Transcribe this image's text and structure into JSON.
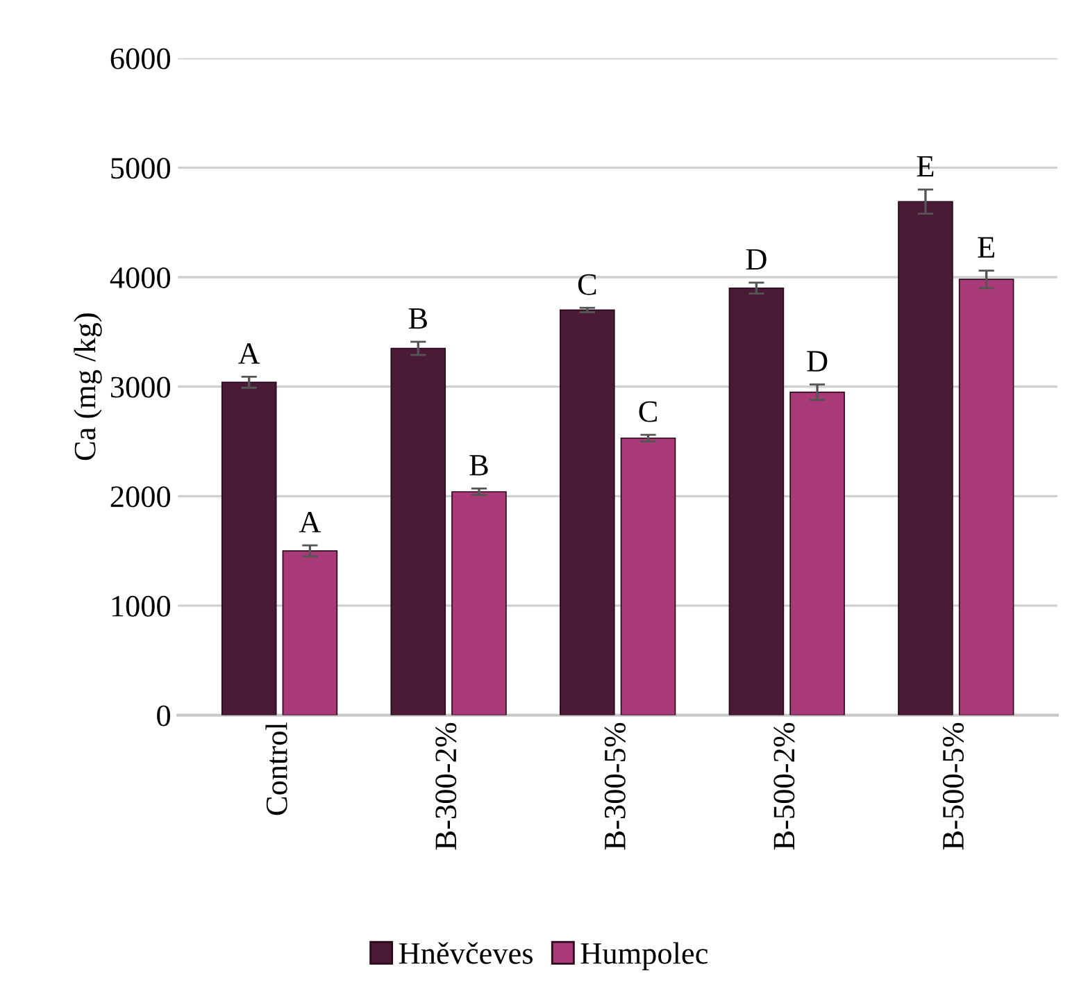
{
  "chart_data": {
    "type": "bar",
    "ylabel": "Ca (mg /kg)",
    "categories": [
      "Control",
      "B-300-2%",
      "B-300-5%",
      "B-500-2%",
      "B-500-5%"
    ],
    "series": [
      {
        "name": "Hněvčeves",
        "color": "#4a1a36",
        "values": [
          3040,
          3350,
          3700,
          3900,
          4690
        ],
        "errors": [
          50,
          60,
          20,
          50,
          110
        ],
        "value_labels": [
          "A",
          "B",
          "C",
          "D",
          "E"
        ]
      },
      {
        "name": "Humpolec",
        "color": "#a83a78",
        "values": [
          1500,
          2040,
          2530,
          2950,
          3980
        ],
        "errors": [
          50,
          30,
          30,
          70,
          80
        ],
        "value_labels": [
          "A",
          "B",
          "C",
          "D",
          "E"
        ]
      }
    ],
    "ylim": [
      0,
      6000
    ],
    "yticks": [
      0,
      1000,
      2000,
      3000,
      4000,
      5000,
      6000
    ],
    "grid": "y",
    "legend": "bottom"
  }
}
